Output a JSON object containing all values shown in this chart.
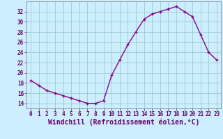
{
  "x": [
    0,
    1,
    2,
    3,
    4,
    5,
    6,
    7,
    8,
    9,
    10,
    11,
    12,
    13,
    14,
    15,
    16,
    17,
    18,
    19,
    20,
    21,
    22,
    23
  ],
  "y": [
    18.5,
    17.5,
    16.5,
    16.0,
    15.5,
    15.0,
    14.5,
    14.0,
    14.0,
    14.5,
    19.5,
    22.5,
    25.5,
    28.0,
    30.5,
    31.5,
    32.0,
    32.5,
    33.0,
    32.0,
    31.0,
    27.5,
    24.0,
    22.5
  ],
  "line_color": "#880088",
  "marker": "+",
  "bg_color": "#cceeff",
  "grid_color": "#99cccc",
  "xlabel": "Windchill (Refroidissement éolien,°C)",
  "xlim_min": -0.5,
  "xlim_max": 23.5,
  "ylim_min": 13,
  "ylim_max": 34,
  "yticks": [
    14,
    16,
    18,
    20,
    22,
    24,
    26,
    28,
    30,
    32
  ],
  "xticks": [
    0,
    1,
    2,
    3,
    4,
    5,
    6,
    7,
    8,
    9,
    10,
    11,
    12,
    13,
    14,
    15,
    16,
    17,
    18,
    19,
    20,
    21,
    22,
    23
  ],
  "tick_fontsize": 5.5,
  "xlabel_fontsize": 7.0,
  "text_color": "#660066",
  "spine_color": "#888888",
  "linewidth": 1.0,
  "markersize": 3.5,
  "markeredgewidth": 1.0
}
